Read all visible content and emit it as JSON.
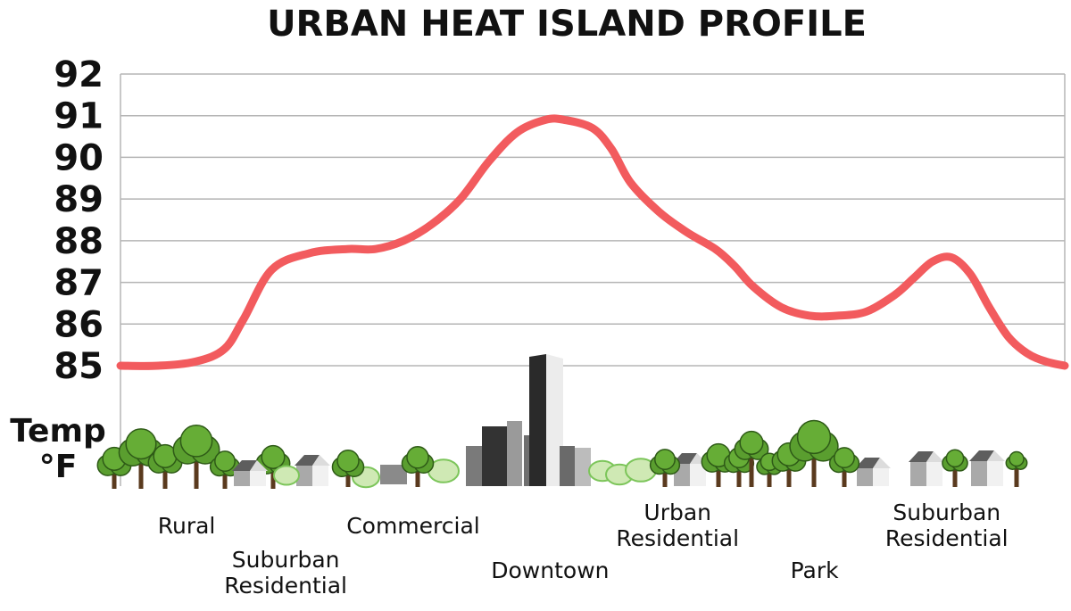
{
  "chart_data": {
    "type": "line",
    "title": "URBAN HEAT ISLAND PROFILE",
    "ylabel": [
      "Temp",
      "°F"
    ],
    "xlabel": "",
    "yticks": [
      85,
      86,
      87,
      88,
      89,
      90,
      91,
      92
    ],
    "ylim": [
      85,
      92
    ],
    "grid": true,
    "series": [
      {
        "name": "",
        "color": "#f25b5e",
        "x": [
          0,
          4,
          8,
          11,
          13,
          16,
          20,
          24,
          27,
          30,
          33,
          36,
          39,
          42,
          45,
          47,
          50,
          52,
          54,
          57,
          60,
          63,
          65,
          67,
          70,
          73,
          76,
          79,
          82,
          84,
          86,
          88,
          90,
          92,
          94,
          96,
          98,
          100
        ],
        "y": [
          85.0,
          85.0,
          85.1,
          85.4,
          86.1,
          87.3,
          87.7,
          87.8,
          87.8,
          88.0,
          88.4,
          89.0,
          89.9,
          90.6,
          90.9,
          90.9,
          90.7,
          90.2,
          89.4,
          88.7,
          88.2,
          87.8,
          87.4,
          86.9,
          86.4,
          86.2,
          86.2,
          86.3,
          86.7,
          87.1,
          87.5,
          87.6,
          87.2,
          86.4,
          85.7,
          85.3,
          85.1,
          85.0
        ]
      }
    ],
    "zones": [
      {
        "label": [
          "Rural"
        ],
        "x": 7,
        "row": "upper"
      },
      {
        "label": [
          "Suburban",
          "Residential"
        ],
        "x": 17.5,
        "row": "lower"
      },
      {
        "label": [
          "Commercial"
        ],
        "x": 31,
        "row": "upper"
      },
      {
        "label": [
          "Downtown"
        ],
        "x": 45.5,
        "row": "lower"
      },
      {
        "label": [
          "Urban",
          "Residential"
        ],
        "x": 59,
        "row": "upper"
      },
      {
        "label": [
          "Park"
        ],
        "x": 73.5,
        "row": "lower"
      },
      {
        "label": [
          "Suburban",
          "Residential"
        ],
        "x": 87.5,
        "row": "upper"
      }
    ]
  }
}
